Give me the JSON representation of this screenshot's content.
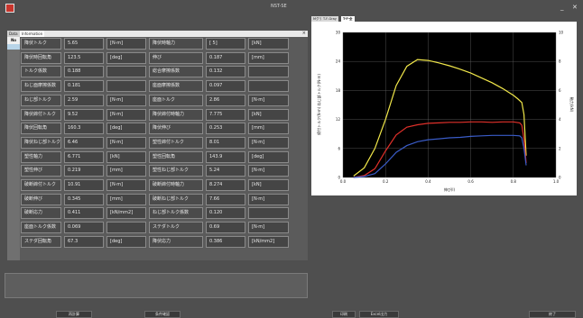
{
  "window": {
    "title": "NST-SE",
    "min": "_",
    "close": "✕"
  },
  "tabs": {
    "items": [
      {
        "label": "Data"
      },
      {
        "label": "Information"
      }
    ],
    "close": "×"
  },
  "table": {
    "no_header": "No",
    "rows": [
      [
        {
          "label": "降伏トルク",
          "value": "5.65",
          "unit": "[N·m]"
        },
        {
          "label": "降伏時軸力",
          "value": "[ 5]",
          "unit": "[kN]"
        }
      ],
      [
        {
          "label": "降伏時回転角",
          "value": "123.5",
          "unit": "[deg]"
        },
        {
          "label": "伸び",
          "value": "0.187",
          "unit": "[mm]"
        }
      ],
      [
        {
          "label": "トルク係数",
          "value": "0.188",
          "unit": ""
        },
        {
          "label": "総合摩擦係数",
          "value": "0.132",
          "unit": ""
        }
      ],
      [
        {
          "label": "ねじ面摩擦係数",
          "value": "0.181",
          "unit": ""
        },
        {
          "label": "座面摩擦係数",
          "value": "0.097",
          "unit": ""
        }
      ],
      [
        {
          "label": "ねじ部トルク",
          "value": "2.59",
          "unit": "[N·m]"
        },
        {
          "label": "座面トルク",
          "value": "2.86",
          "unit": "[N·m]"
        }
      ],
      [
        {
          "label": "降伏締付トルク",
          "value": "9.52",
          "unit": "[N·m]"
        },
        {
          "label": "降伏締付時軸力",
          "value": "7.775",
          "unit": "[kN]"
        }
      ],
      [
        {
          "label": "降伏回転角",
          "value": "160.3",
          "unit": "[deg]"
        },
        {
          "label": "降伏伸び",
          "value": "0.253",
          "unit": "[mm]"
        }
      ],
      [
        {
          "label": "降伏ねじ部トルク",
          "value": "6.46",
          "unit": "[N·m]"
        },
        {
          "label": "塑性締付トルク",
          "value": "8.01",
          "unit": "[N·m]"
        }
      ],
      [
        {
          "label": "塑性軸力",
          "value": "6.771",
          "unit": "[kN]"
        },
        {
          "label": "塑性回転角",
          "value": "143.9",
          "unit": "[deg]"
        }
      ],
      [
        {
          "label": "塑性伸び",
          "value": "0.219",
          "unit": "[mm]"
        },
        {
          "label": "塑性ねじ部トルク",
          "value": "5.24",
          "unit": "[N·m]"
        }
      ],
      [
        {
          "label": "破断締付トルク",
          "value": "10.91",
          "unit": "[N·m]"
        },
        {
          "label": "破断締付時軸力",
          "value": "8.274",
          "unit": "[kN]"
        }
      ],
      [
        {
          "label": "破断伸び",
          "value": "0.345",
          "unit": "[mm]"
        },
        {
          "label": "破断ねじ部トルク",
          "value": "7.66",
          "unit": "[N·m]"
        }
      ],
      [
        {
          "label": "破断応力",
          "value": "0.411",
          "unit": "[kN/mm2]"
        },
        {
          "label": "ねじ部トルク係数",
          "value": "0.120",
          "unit": ""
        }
      ],
      [
        {
          "label": "座面トルク係数",
          "value": "0.069",
          "unit": ""
        },
        {
          "label": "ステダトルク",
          "value": "0.69",
          "unit": "[N·m]"
        }
      ],
      [
        {
          "label": "ステダ回転角",
          "value": "67.3",
          "unit": "[deg]"
        },
        {
          "label": "降伏応力",
          "value": "0.386",
          "unit": "[kN/mm2]"
        }
      ]
    ]
  },
  "buttons": {
    "b1": "再計算",
    "b2": "条件確認",
    "b3": "印刷",
    "b4": "Excel出力",
    "b5": "終了"
  },
  "graph_tabs": [
    {
      "label": "Mグラ"
    },
    {
      "label": "T-F-Gray"
    },
    {
      "label": "T-F-全"
    }
  ],
  "chart_data": {
    "type": "line",
    "xlabel": "伸び(l)",
    "ylabel_left": "締付トルク(N·m) ねじ部トルク(N·m)",
    "ylabel_right": "軸力(kN)",
    "xlim": [
      0,
      1.0
    ],
    "ylim": [
      0,
      30
    ],
    "ylim_right": [
      0,
      10
    ],
    "x_ticks": [
      "0.0",
      "0.2",
      "0.4",
      "0.6",
      "0.8",
      "1.0"
    ],
    "y_ticks": [
      "0",
      "6",
      "12",
      "18",
      "24",
      "30"
    ],
    "y_right_ticks": [
      "0",
      "2",
      "4",
      "6",
      "8",
      "10"
    ],
    "grid": true,
    "colors": {
      "yellow": "#f2e84a",
      "red": "#e0302a",
      "blue": "#3a5cc8",
      "background": "#000000"
    },
    "series": [
      {
        "color": "yellow",
        "x": [
          0.05,
          0.1,
          0.15,
          0.2,
          0.25,
          0.3,
          0.35,
          0.4,
          0.45,
          0.5,
          0.55,
          0.6,
          0.65,
          0.7,
          0.75,
          0.8,
          0.82,
          0.84,
          0.85,
          0.86
        ],
        "y": [
          0.3,
          2,
          6,
          12,
          19,
          23,
          24.4,
          24.2,
          23.7,
          23.1,
          22.4,
          21.6,
          20.6,
          19.6,
          18.4,
          17,
          16.3,
          15.5,
          13,
          4.5
        ]
      },
      {
        "color": "red",
        "x": [
          0.05,
          0.1,
          0.15,
          0.2,
          0.25,
          0.3,
          0.35,
          0.4,
          0.45,
          0.5,
          0.55,
          0.6,
          0.65,
          0.7,
          0.75,
          0.8,
          0.83,
          0.84,
          0.85,
          0.86
        ],
        "y": [
          0,
          0.4,
          1.8,
          5.5,
          8.8,
          10.4,
          10.9,
          11.2,
          11.3,
          11.4,
          11.4,
          11.5,
          11.5,
          11.4,
          11.5,
          11.5,
          11.3,
          10.8,
          8,
          3
        ]
      },
      {
        "color": "blue",
        "x": [
          0.05,
          0.1,
          0.15,
          0.2,
          0.25,
          0.3,
          0.35,
          0.4,
          0.45,
          0.5,
          0.55,
          0.6,
          0.65,
          0.7,
          0.75,
          0.8,
          0.83,
          0.84,
          0.85,
          0.86
        ],
        "y": [
          0,
          0.2,
          0.8,
          2.8,
          5.2,
          6.6,
          7.4,
          7.8,
          8,
          8.2,
          8.3,
          8.5,
          8.6,
          8.7,
          8.7,
          8.7,
          8.6,
          8.2,
          6,
          2.5
        ]
      }
    ]
  }
}
